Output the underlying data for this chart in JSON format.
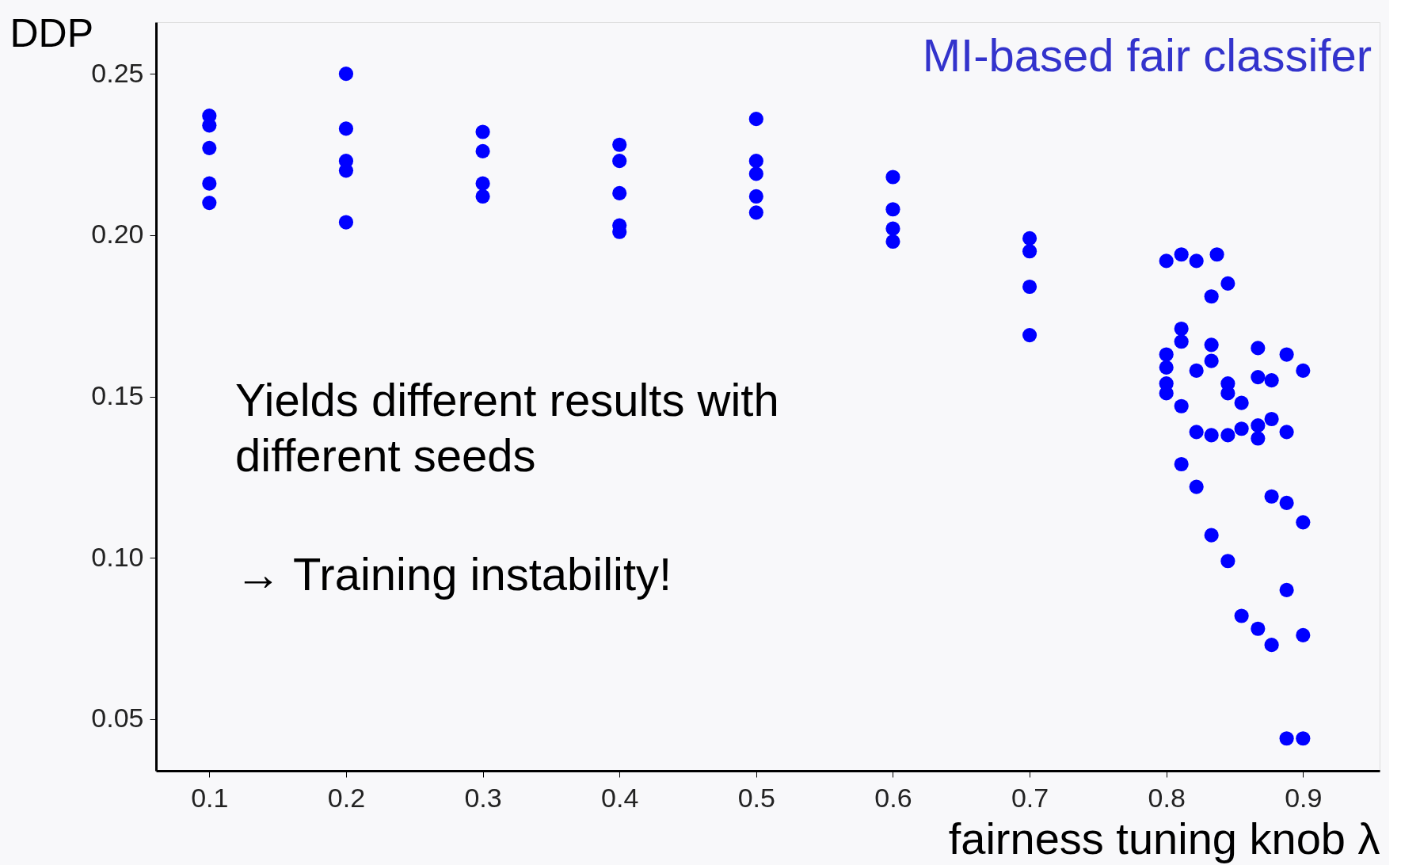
{
  "chart_data": {
    "type": "scatter",
    "xlabel": "fairness tuning knob  λ",
    "ylabel": "DDP",
    "xlim": [
      0.061,
      0.956
    ],
    "ylim": [
      0.034,
      0.266
    ],
    "xticks": [
      0.1,
      0.2,
      0.3,
      0.4,
      0.5,
      0.6,
      0.7,
      0.8,
      0.9
    ],
    "yticks": [
      {
        "value": 0.05,
        "label": "0.05"
      },
      {
        "value": 0.1,
        "label": "0.10"
      },
      {
        "value": 0.15,
        "label": "0.15"
      },
      {
        "value": 0.2,
        "label": "0.20"
      },
      {
        "value": 0.25,
        "label": "0.25"
      }
    ],
    "grid": false,
    "marker": "circle",
    "annotations": [
      "MI-based fair classifer",
      "Yields different results with\ndifferent seeds",
      "→ Training instability!"
    ],
    "series": [
      {
        "color": "#0000ff",
        "x": [
          0.1,
          0.1,
          0.1,
          0.1,
          0.1,
          0.2,
          0.2,
          0.2,
          0.2,
          0.2,
          0.3,
          0.3,
          0.3,
          0.3,
          0.4,
          0.4,
          0.4,
          0.4,
          0.4,
          0.5,
          0.5,
          0.5,
          0.5,
          0.5,
          0.6,
          0.6,
          0.6,
          0.6,
          0.7,
          0.7,
          0.7,
          0.7,
          0.8,
          0.811,
          0.822,
          0.837,
          0.845,
          0.833,
          0.8,
          0.811,
          0.811,
          0.8,
          0.8,
          0.8,
          0.811,
          0.822,
          0.833,
          0.833,
          0.822,
          0.833,
          0.845,
          0.845,
          0.845,
          0.855,
          0.855,
          0.867,
          0.867,
          0.877,
          0.877,
          0.867,
          0.867,
          0.888,
          0.888,
          0.9,
          0.811,
          0.822,
          0.833,
          0.845,
          0.855,
          0.867,
          0.877,
          0.877,
          0.888,
          0.9,
          0.888,
          0.9,
          0.888,
          0.9
        ],
        "values": [
          0.237,
          0.234,
          0.227,
          0.216,
          0.21,
          0.25,
          0.233,
          0.223,
          0.22,
          0.204,
          0.232,
          0.226,
          0.216,
          0.212,
          0.228,
          0.223,
          0.213,
          0.203,
          0.201,
          0.236,
          0.223,
          0.219,
          0.212,
          0.207,
          0.218,
          0.208,
          0.202,
          0.198,
          0.199,
          0.195,
          0.184,
          0.169,
          0.192,
          0.194,
          0.192,
          0.194,
          0.185,
          0.181,
          0.163,
          0.171,
          0.167,
          0.159,
          0.154,
          0.151,
          0.147,
          0.158,
          0.166,
          0.161,
          0.139,
          0.138,
          0.138,
          0.154,
          0.151,
          0.148,
          0.14,
          0.165,
          0.156,
          0.155,
          0.143,
          0.141,
          0.137,
          0.163,
          0.139,
          0.158,
          0.129,
          0.122,
          0.107,
          0.099,
          0.082,
          0.078,
          0.073,
          0.119,
          0.117,
          0.111,
          0.09,
          0.076,
          0.044,
          0.044
        ]
      }
    ]
  }
}
